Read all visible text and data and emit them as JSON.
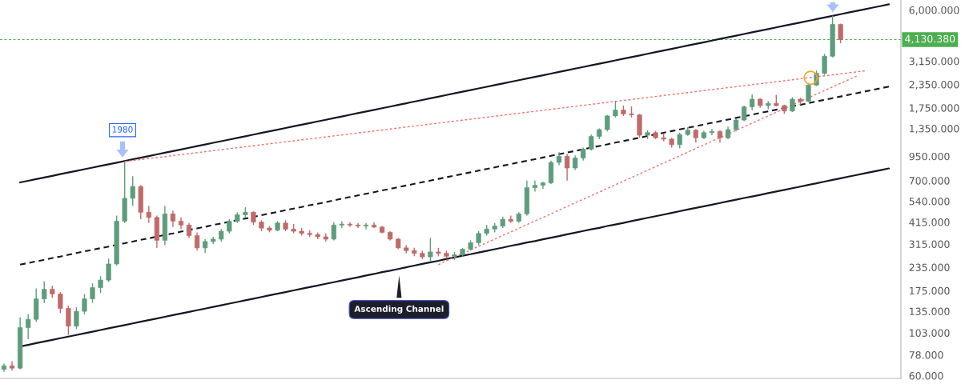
{
  "chart_data": {
    "type": "candlestick",
    "categories": [
      null,
      null,
      null,
      null,
      null,
      null,
      null,
      null,
      null,
      null,
      null,
      null,
      null,
      null,
      null,
      null,
      null,
      null,
      null,
      null,
      null,
      null,
      null,
      null,
      null,
      null,
      null,
      null,
      null,
      null,
      null,
      null,
      null,
      null,
      null,
      null,
      null,
      null,
      null,
      null,
      null,
      null,
      null,
      null,
      null,
      null,
      null,
      null,
      null,
      null,
      null,
      null,
      null,
      null,
      null,
      null,
      null,
      null,
      null,
      null,
      null,
      null,
      null,
      null,
      null,
      null,
      null,
      null,
      null,
      null,
      null,
      null,
      null,
      null,
      null,
      null,
      null,
      null,
      null,
      null,
      null,
      null,
      null,
      null,
      null,
      null,
      null,
      null,
      null,
      null,
      null,
      null,
      null,
      null,
      null,
      null,
      null,
      null,
      null,
      null,
      null,
      null,
      null,
      null,
      null,
      null,
      null,
      null,
      null,
      null,
      null,
      null
    ],
    "ohlc": [
      [
        65,
        70,
        63,
        68
      ],
      [
        68,
        72,
        64,
        66
      ],
      [
        66,
        125,
        65,
        110
      ],
      [
        110,
        130,
        95,
        122
      ],
      [
        122,
        180,
        118,
        158
      ],
      [
        158,
        197,
        150,
        178
      ],
      [
        178,
        186,
        160,
        168
      ],
      [
        168,
        172,
        132,
        140
      ],
      [
        140,
        145,
        100,
        112
      ],
      [
        112,
        142,
        108,
        135
      ],
      [
        135,
        168,
        130,
        158
      ],
      [
        158,
        192,
        150,
        182
      ],
      [
        182,
        210,
        170,
        200
      ],
      [
        200,
        262,
        195,
        245
      ],
      [
        245,
        450,
        240,
        420
      ],
      [
        420,
        890,
        410,
        560
      ],
      [
        560,
        740,
        510,
        650
      ],
      [
        650,
        660,
        430,
        470
      ],
      [
        470,
        510,
        410,
        440
      ],
      [
        440,
        450,
        300,
        330
      ],
      [
        330,
        510,
        310,
        460
      ],
      [
        460,
        480,
        390,
        420
      ],
      [
        420,
        440,
        380,
        400
      ],
      [
        400,
        410,
        340,
        350
      ],
      [
        350,
        365,
        290,
        300
      ],
      [
        300,
        335,
        281,
        325
      ],
      [
        325,
        345,
        315,
        335
      ],
      [
        335,
        380,
        325,
        370
      ],
      [
        370,
        430,
        360,
        420
      ],
      [
        420,
        470,
        410,
        455
      ],
      [
        455,
        500,
        440,
        470
      ],
      [
        470,
        475,
        400,
        415
      ],
      [
        415,
        425,
        370,
        385
      ],
      [
        385,
        395,
        365,
        375
      ],
      [
        375,
        420,
        370,
        410
      ],
      [
        410,
        425,
        370,
        380
      ],
      [
        380,
        405,
        360,
        370
      ],
      [
        370,
        385,
        350,
        360
      ],
      [
        360,
        375,
        345,
        355
      ],
      [
        355,
        365,
        335,
        345
      ],
      [
        345,
        360,
        325,
        335
      ],
      [
        335,
        415,
        330,
        400
      ],
      [
        400,
        420,
        385,
        405
      ],
      [
        405,
        415,
        390,
        400
      ],
      [
        400,
        410,
        385,
        395
      ],
      [
        395,
        410,
        380,
        400
      ],
      [
        400,
        415,
        385,
        390
      ],
      [
        390,
        395,
        360,
        365
      ],
      [
        365,
        370,
        330,
        335
      ],
      [
        335,
        340,
        295,
        300
      ],
      [
        300,
        310,
        280,
        290
      ],
      [
        290,
        300,
        270,
        280
      ],
      [
        280,
        290,
        260,
        268
      ],
      [
        268,
        340,
        254,
        285
      ],
      [
        285,
        300,
        270,
        280
      ],
      [
        280,
        290,
        262,
        270
      ],
      [
        270,
        285,
        258,
        275
      ],
      [
        275,
        300,
        268,
        295
      ],
      [
        295,
        330,
        290,
        320
      ],
      [
        320,
        370,
        310,
        360
      ],
      [
        360,
        400,
        350,
        380
      ],
      [
        380,
        410,
        365,
        395
      ],
      [
        395,
        445,
        385,
        430
      ],
      [
        430,
        450,
        410,
        420
      ],
      [
        420,
        470,
        410,
        460
      ],
      [
        460,
        700,
        450,
        640
      ],
      [
        640,
        700,
        610,
        660
      ],
      [
        660,
        690,
        630,
        680
      ],
      [
        680,
        900,
        670,
        880
      ],
      [
        880,
        1000,
        850,
        950
      ],
      [
        950,
        980,
        700,
        820
      ],
      [
        820,
        960,
        800,
        930
      ],
      [
        930,
        1060,
        900,
        1040
      ],
      [
        1040,
        1250,
        1020,
        1220
      ],
      [
        1220,
        1350,
        1180,
        1330
      ],
      [
        1330,
        1600,
        1300,
        1580
      ],
      [
        1580,
        1900,
        1550,
        1700
      ],
      [
        1700,
        1800,
        1580,
        1620
      ],
      [
        1620,
        1780,
        1550,
        1600
      ],
      [
        1600,
        1620,
        1200,
        1240
      ],
      [
        1240,
        1320,
        1180,
        1280
      ],
      [
        1280,
        1310,
        1180,
        1200
      ],
      [
        1200,
        1260,
        1150,
        1180
      ],
      [
        1180,
        1200,
        1060,
        1100
      ],
      [
        1100,
        1280,
        1050,
        1250
      ],
      [
        1250,
        1370,
        1230,
        1320
      ],
      [
        1320,
        1340,
        1130,
        1200
      ],
      [
        1200,
        1310,
        1180,
        1280
      ],
      [
        1280,
        1340,
        1240,
        1300
      ],
      [
        1300,
        1320,
        1130,
        1200
      ],
      [
        1200,
        1380,
        1180,
        1330
      ],
      [
        1330,
        1520,
        1300,
        1500
      ],
      [
        1500,
        1800,
        1480,
        1770
      ],
      [
        1770,
        2070,
        1700,
        1950
      ],
      [
        1950,
        1980,
        1750,
        1800
      ],
      [
        1800,
        1900,
        1720,
        1850
      ],
      [
        1850,
        2060,
        1780,
        1800
      ],
      [
        1800,
        1820,
        1620,
        1680
      ],
      [
        1680,
        2000,
        1660,
        1950
      ],
      [
        1950,
        1990,
        1820,
        1900
      ],
      [
        1900,
        2360,
        1880,
        2330
      ],
      [
        2330,
        2800,
        2300,
        2700
      ],
      [
        2700,
        3450,
        2650,
        3350
      ],
      [
        3350,
        5580,
        3300,
        5000
      ],
      [
        5000,
        5050,
        3950,
        4130
      ],
      null,
      null,
      null,
      null,
      null,
      null,
      null
    ],
    "colors": [
      "#5e9c7c",
      "#c06a6a",
      "#5e9c7c",
      "#5e9c7c",
      "#5e9c7c",
      "#5e9c7c",
      "#c06a6a",
      "#c06a6a",
      "#c06a6a",
      "#5e9c7c",
      "#5e9c7c",
      "#5e9c7c",
      "#5e9c7c",
      "#5e9c7c",
      "#5e9c7c",
      "#5e9c7c",
      "#5e9c7c",
      "#c06a6a",
      "#c06a6a",
      "#c06a6a",
      "#5e9c7c",
      "#c06a6a",
      "#c06a6a",
      "#c06a6a",
      "#c06a6a",
      "#5e9c7c",
      "#5e9c7c",
      "#5e9c7c",
      "#5e9c7c",
      "#5e9c7c",
      "#5e9c7c",
      "#c06a6a",
      "#c06a6a",
      "#c06a6a",
      "#5e9c7c",
      "#c06a6a",
      "#c06a6a",
      "#c06a6a",
      "#c06a6a",
      "#c06a6a",
      "#c06a6a",
      "#5e9c7c",
      "#5e9c7c",
      "#c06a6a",
      "#c06a6a",
      "#5e9c7c",
      "#c06a6a",
      "#c06a6a",
      "#c06a6a",
      "#c06a6a",
      "#c06a6a",
      "#c06a6a",
      "#c06a6a",
      "#5e9c7c",
      "#c06a6a",
      "#c06a6a",
      "#5e9c7c",
      "#5e9c7c",
      "#5e9c7c",
      "#5e9c7c",
      "#5e9c7c",
      "#5e9c7c",
      "#5e9c7c",
      "#c06a6a",
      "#5e9c7c",
      "#5e9c7c",
      "#5e9c7c",
      "#5e9c7c",
      "#5e9c7c",
      "#5e9c7c",
      "#c06a6a",
      "#5e9c7c",
      "#5e9c7c",
      "#5e9c7c",
      "#5e9c7c",
      "#5e9c7c",
      "#5e9c7c",
      "#c06a6a",
      "#c06a6a",
      "#c06a6a",
      "#5e9c7c",
      "#c06a6a",
      "#c06a6a",
      "#c06a6a",
      "#5e9c7c",
      "#5e9c7c",
      "#c06a6a",
      "#5e9c7c",
      "#5e9c7c",
      "#c06a6a",
      "#5e9c7c",
      "#5e9c7c",
      "#5e9c7c",
      "#5e9c7c",
      "#c06a6a",
      "#5e9c7c",
      "#c06a6a",
      "#c06a6a",
      "#5e9c7c",
      "#c06a6a",
      "#5e9c7c",
      "#5e9c7c",
      "#5e9c7c",
      "#5e9c7c",
      "#c06a6a",
      null,
      null,
      null,
      null,
      null,
      null,
      null
    ],
    "series": [
      {
        "type": "line",
        "color": "#131722",
        "line_style": "solid",
        "values": [
          null,
          null,
          684,
          698,
          713,
          728,
          743,
          759,
          775,
          791,
          808,
          824,
          842,
          859,
          877,
          896,
          915,
          934,
          953,
          973,
          994,
          1015,
          1036,
          1058,
          1080,
          1103,
          1126,
          1149,
          1173,
          1198,
          1223,
          1249,
          1275,
          1302,
          1329,
          1357,
          1386,
          1415,
          1444,
          1475,
          1505,
          1537,
          1569,
          1602,
          1636,
          1670,
          1705,
          1741,
          1777,
          1815,
          1853,
          1892,
          1931,
          1972,
          2013,
          2056,
          2099,
          2143,
          2188,
          2234,
          2280,
          2328,
          2377,
          2427,
          2478,
          2530,
          2583,
          2637,
          2692,
          2749,
          2807,
          2866,
          2926,
          2987,
          3050,
          3114,
          3179,
          3246,
          3314,
          3383,
          3454,
          3527,
          3601,
          3676,
          3753,
          3832,
          3913,
          3995,
          4078,
          4164,
          4251,
          4341,
          4432,
          4525,
          4619,
          4716,
          4815,
          4916,
          5019,
          5125,
          5232,
          5342,
          5454,
          5569,
          5685,
          5805,
          5926,
          6051,
          6178,
          6307,
          6440,
          null
        ]
      },
      {
        "type": "line",
        "color": "#131722",
        "line_style": "dashed",
        "values": [
          null,
          null,
          243,
          248,
          253,
          258,
          264,
          269,
          275,
          281,
          287,
          293,
          299,
          305,
          312,
          318,
          325,
          332,
          338,
          346,
          353,
          360,
          368,
          376,
          383,
          391,
          400,
          408,
          417,
          425,
          434,
          443,
          453,
          462,
          472,
          482,
          492,
          502,
          513,
          523,
          534,
          546,
          557,
          569,
          581,
          593,
          605,
          618,
          631,
          644,
          658,
          672,
          686,
          700,
          715,
          730,
          745,
          761,
          777,
          793,
          810,
          827,
          844,
          862,
          880,
          898,
          917,
          936,
          956,
          976,
          996,
          1017,
          1039,
          1060,
          1083,
          1105,
          1129,
          1152,
          1176,
          1201,
          1226,
          1252,
          1278,
          1305,
          1332,
          1360,
          1389,
          1418,
          1448,
          1478,
          1509,
          1541,
          1573,
          1606,
          1640,
          1674,
          1709,
          1745,
          1782,
          1819,
          1857,
          1896,
          1936,
          1977,
          2018,
          2061,
          2104,
          2148,
          2193,
          2239,
          2286,
          null
        ]
      },
      {
        "type": "line",
        "color": "#131722",
        "line_style": "solid",
        "values": [
          null,
          null,
          86.7,
          88.5,
          90.4,
          92.3,
          94.2,
          96.2,
          98.2,
          100.2,
          102.3,
          104.5,
          106.7,
          108.9,
          111.2,
          113.5,
          115.9,
          118.4,
          120.8,
          123.4,
          126.0,
          128.6,
          131.3,
          134.1,
          136.9,
          139.7,
          142.7,
          145.7,
          148.7,
          151.8,
          155.0,
          158.3,
          161.6,
          165.0,
          168.4,
          172.0,
          175.6,
          179.3,
          183.0,
          186.9,
          190.8,
          194.8,
          199,
          203,
          207,
          212,
          216,
          221,
          225,
          230,
          235,
          240,
          245,
          250,
          255,
          261,
          266,
          272,
          277,
          283,
          289,
          295,
          301,
          308,
          314,
          321,
          327,
          334,
          341,
          348,
          356,
          363,
          371,
          379,
          386,
          395,
          403,
          411,
          420,
          429,
          438,
          447,
          456,
          466,
          476,
          486,
          496,
          506,
          517,
          528,
          539,
          550,
          562,
          573,
          585,
          598,
          610,
          623,
          636,
          649,
          663,
          677,
          691,
          706,
          721,
          736,
          751,
          767,
          783,
          799,
          816,
          null
        ]
      },
      {
        "type": "line",
        "color": "#f26d6d",
        "line_style": "dotted",
        "values": [
          null,
          null,
          null,
          null,
          null,
          null,
          null,
          null,
          null,
          null,
          null,
          null,
          null,
          null,
          null,
          890,
          901,
          912,
          924,
          935,
          947,
          959,
          971,
          983,
          995,
          1007,
          1020,
          1033,
          1046,
          1059,
          1072,
          1085,
          1099,
          1113,
          1126,
          1140,
          1155,
          1169,
          1184,
          1198,
          1213,
          1229,
          1244,
          1259,
          1275,
          1291,
          1307,
          1323,
          1340,
          1357,
          1374,
          1391,
          1408,
          1426,
          1443,
          1461,
          1480,
          1498,
          1517,
          1536,
          1555,
          1574,
          1594,
          1614,
          1634,
          1654,
          1675,
          1696,
          1717,
          1739,
          1760,
          1782,
          1804,
          1827,
          1850,
          1873,
          1896,
          1920,
          1944,
          1968,
          1993,
          2017,
          2043,
          2068,
          2094,
          2120,
          2147,
          2173,
          2200,
          2228,
          2256,
          2284,
          2312,
          2341,
          2370,
          2400,
          2430,
          2460,
          2491,
          2522,
          2553,
          2585,
          2618,
          2650,
          2683,
          2717,
          2751,
          2785,
          null,
          null,
          null,
          null
        ]
      },
      {
        "type": "line",
        "color": "#f26d6d",
        "line_style": "dotted",
        "values": [
          null,
          null,
          null,
          null,
          null,
          null,
          null,
          null,
          null,
          null,
          null,
          null,
          null,
          null,
          null,
          null,
          null,
          null,
          null,
          null,
          null,
          null,
          null,
          null,
          null,
          null,
          null,
          null,
          null,
          null,
          null,
          null,
          null,
          null,
          null,
          null,
          null,
          null,
          null,
          null,
          null,
          null,
          null,
          null,
          null,
          null,
          null,
          null,
          null,
          null,
          null,
          null,
          null,
          null,
          243,
          255,
          267,
          279,
          292,
          306,
          320,
          335,
          351,
          367,
          384,
          402,
          421,
          440,
          461,
          482,
          505,
          529,
          553,
          579,
          606,
          634,
          664,
          695,
          727,
          761,
          797,
          834,
          873,
          914,
          957,
          1001,
          1048,
          1097,
          1148,
          1202,
          1258,
          1317,
          1378,
          1442,
          1510,
          1580,
          1654,
          1731,
          1812,
          1897,
          1985,
          2078,
          2175,
          2276,
          2383,
          2494,
          2610,
          null,
          null,
          null,
          null,
          null
        ]
      }
    ],
    "log": true,
    "ylim": [
      58,
      6800
    ],
    "yticks": [
      {
        "value": 60,
        "label": "60.000"
      },
      {
        "value": 78,
        "label": "78.000"
      },
      {
        "value": 103,
        "label": "103.000"
      },
      {
        "value": 135,
        "label": "135.000"
      },
      {
        "value": 175,
        "label": "175.000"
      },
      {
        "value": 235,
        "label": "235.000"
      },
      {
        "value": 315,
        "label": "315.000"
      },
      {
        "value": 415,
        "label": "415.000"
      },
      {
        "value": 540,
        "label": "540.000"
      },
      {
        "value": 700,
        "label": "700.000"
      },
      {
        "value": 950,
        "label": "950.000"
      },
      {
        "value": 1350,
        "label": "1,350.000"
      },
      {
        "value": 1750,
        "label": "1,750.000"
      },
      {
        "value": 2350,
        "label": "2,350.000"
      },
      {
        "value": 3150,
        "label": "3,150.000"
      },
      {
        "value": 6000,
        "label": "6,000.000"
      }
    ],
    "ref_lines": [
      {
        "axis": "y",
        "value": 4130.38,
        "label": "4,130.380",
        "color": "#4caf50",
        "line_style": "dotted"
      }
    ],
    "annotations": [
      "1980",
      "Ascending Channel"
    ],
    "tick_labels": "y"
  }
}
